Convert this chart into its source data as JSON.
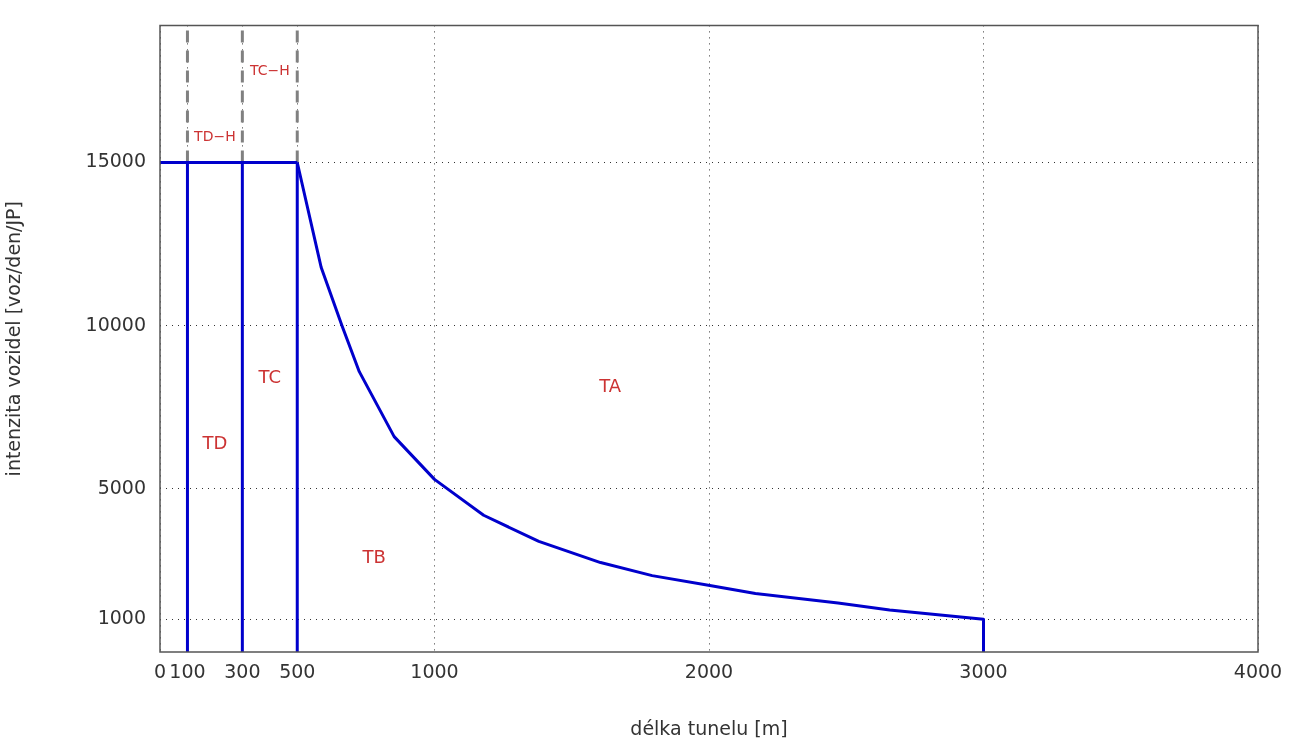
{
  "chart_data": {
    "type": "line",
    "xlabel": "délka tunelu [m]",
    "ylabel": "intenzita vozidel [voz/den/JP]",
    "xlim": [
      0,
      4000
    ],
    "xticks": [
      0,
      100,
      300,
      500,
      1000,
      2000,
      3000,
      4000
    ],
    "ylim": [
      0,
      19200
    ],
    "yticks": [
      1000,
      5000,
      10000,
      15000
    ],
    "grid": true,
    "legend": false,
    "marker": "none",
    "series": [
      {
        "type": "line",
        "color": "#0000cc",
        "line_style": "solid",
        "x": [
          0,
          500
        ],
        "values": [
          15000,
          15000
        ]
      },
      {
        "type": "line",
        "color": "#0000cc",
        "line_style": "solid",
        "x": [
          100,
          100
        ],
        "values": [
          0,
          15000
        ]
      },
      {
        "type": "line",
        "color": "#0000cc",
        "line_style": "solid",
        "x": [
          300,
          300
        ],
        "values": [
          0,
          15000
        ]
      },
      {
        "type": "line",
        "color": "#0000cc",
        "line_style": "solid",
        "x": [
          500,
          500
        ],
        "values": [
          0,
          15000
        ]
      },
      {
        "type": "line",
        "color": "#0000cc",
        "line_style": "solid",
        "x": [
          500,
          587,
          663,
          726,
          853,
          1000,
          1179,
          1380,
          1605,
          1793,
          2003,
          2169,
          2470,
          2658,
          3000,
          3000
        ],
        "values": [
          15000,
          11790,
          10000,
          8590,
          6600,
          5290,
          4190,
          3390,
          2740,
          2340,
          2040,
          1790,
          1500,
          1290,
          1000,
          0
        ]
      },
      {
        "type": "line",
        "color": "#808080",
        "line_style": "dashed",
        "x": [
          100,
          100
        ],
        "values": [
          15000,
          19200
        ]
      },
      {
        "type": "line",
        "color": "#808080",
        "line_style": "dashed",
        "x": [
          300,
          300
        ],
        "values": [
          15000,
          19200
        ]
      },
      {
        "type": "line",
        "color": "#808080",
        "line_style": "dashed",
        "x": [
          500,
          500
        ],
        "values": [
          15000,
          19200
        ]
      }
    ],
    "annotations": [
      "TD",
      "TC",
      "TB",
      "TA",
      "TD−H",
      "TC−H"
    ]
  }
}
